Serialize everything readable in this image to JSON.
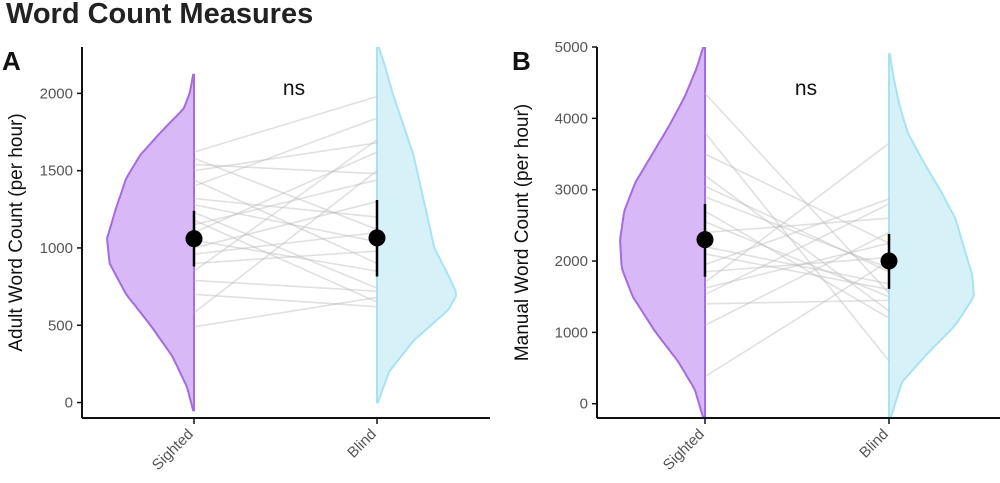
{
  "title": "Word Count Measures",
  "colors": {
    "sighted_fill": "#D9B8F7",
    "sighted_stroke": "#A36CE0",
    "blind_fill": "#D6F1F8",
    "blind_stroke": "#A8E3F2",
    "paired_line": "#BBBBBB",
    "point": "#000000"
  },
  "chart_data": [
    {
      "type": "violin",
      "panel": "A",
      "title": "",
      "xlabel": "",
      "ylabel": "Adult Word Count (per hour)",
      "categories": [
        "Sighted",
        "Blind"
      ],
      "ylim": [
        -100,
        2300
      ],
      "yticks": [
        0,
        500,
        1000,
        1500,
        2000
      ],
      "significance": "ns",
      "summary": [
        {
          "group": "Sighted",
          "mean": 1060,
          "lower": 880,
          "upper": 1240
        },
        {
          "group": "Blind",
          "mean": 1065,
          "lower": 815,
          "upper": 1310
        }
      ],
      "density": {
        "Sighted": [
          [
            -50,
            0.01
          ],
          [
            100,
            0.08
          ],
          [
            300,
            0.25
          ],
          [
            500,
            0.5
          ],
          [
            700,
            0.78
          ],
          [
            900,
            0.97
          ],
          [
            1060,
            1.0
          ],
          [
            1250,
            0.9
          ],
          [
            1450,
            0.78
          ],
          [
            1600,
            0.62
          ],
          [
            1750,
            0.38
          ],
          [
            1900,
            0.12
          ],
          [
            2000,
            0.05
          ],
          [
            2120,
            0.01
          ]
        ],
        "Blind": [
          [
            0,
            0.01
          ],
          [
            200,
            0.14
          ],
          [
            400,
            0.42
          ],
          [
            600,
            0.82
          ],
          [
            700,
            0.92
          ],
          [
            800,
            0.84
          ],
          [
            1000,
            0.66
          ],
          [
            1200,
            0.58
          ],
          [
            1400,
            0.5
          ],
          [
            1600,
            0.42
          ],
          [
            1800,
            0.3
          ],
          [
            2000,
            0.18
          ],
          [
            2200,
            0.08
          ],
          [
            2300,
            0.02
          ]
        ]
      },
      "pairs": [
        [
          1620,
          1980
        ],
        [
          1580,
          1120
        ],
        [
          1540,
          1480
        ],
        [
          1500,
          1680
        ],
        [
          1440,
          900
        ],
        [
          1400,
          1840
        ],
        [
          1320,
          1200
        ],
        [
          1280,
          1040
        ],
        [
          1230,
          740
        ],
        [
          1180,
          650
        ],
        [
          1150,
          1440
        ],
        [
          1100,
          1620
        ],
        [
          1050,
          850
        ],
        [
          1000,
          1300
        ],
        [
          960,
          1100
        ],
        [
          900,
          980
        ],
        [
          850,
          1700
        ],
        [
          790,
          720
        ],
        [
          700,
          620
        ],
        [
          580,
          1500
        ],
        [
          490,
          680
        ]
      ]
    },
    {
      "type": "violin",
      "panel": "B",
      "title": "",
      "xlabel": "",
      "ylabel": "Manual Word Count (per hour)",
      "categories": [
        "Sighted",
        "Blind"
      ],
      "ylim": [
        -200,
        5000
      ],
      "yticks": [
        0,
        1000,
        2000,
        3000,
        4000,
        5000
      ],
      "significance": "ns",
      "summary": [
        {
          "group": "Sighted",
          "mean": 2300,
          "lower": 1780,
          "upper": 2800
        },
        {
          "group": "Blind",
          "mean": 2000,
          "lower": 1610,
          "upper": 2380
        }
      ],
      "density": {
        "Sighted": [
          [
            -200,
            0.02
          ],
          [
            200,
            0.12
          ],
          [
            600,
            0.32
          ],
          [
            1000,
            0.58
          ],
          [
            1500,
            0.85
          ],
          [
            1900,
            0.98
          ],
          [
            2300,
            1.0
          ],
          [
            2700,
            0.95
          ],
          [
            3100,
            0.82
          ],
          [
            3500,
            0.62
          ],
          [
            3900,
            0.42
          ],
          [
            4300,
            0.24
          ],
          [
            4700,
            0.1
          ],
          [
            5000,
            0.02
          ]
        ],
        "Blind": [
          [
            -200,
            0.02
          ],
          [
            300,
            0.15
          ],
          [
            700,
            0.45
          ],
          [
            1100,
            0.78
          ],
          [
            1500,
            1.0
          ],
          [
            1800,
            0.98
          ],
          [
            2200,
            0.88
          ],
          [
            2600,
            0.78
          ],
          [
            3000,
            0.6
          ],
          [
            3400,
            0.4
          ],
          [
            3800,
            0.22
          ],
          [
            4200,
            0.12
          ],
          [
            4600,
            0.05
          ],
          [
            4900,
            0.01
          ]
        ]
      },
      "pairs": [
        [
          4350,
          1550
        ],
        [
          3800,
          600
        ],
        [
          3500,
          2250
        ],
        [
          3200,
          1300
        ],
        [
          3050,
          1850
        ],
        [
          2900,
          1900
        ],
        [
          2700,
          1200
        ],
        [
          2550,
          1500
        ],
        [
          2400,
          2600
        ],
        [
          2200,
          1680
        ],
        [
          2100,
          1600
        ],
        [
          1950,
          2870
        ],
        [
          1850,
          2050
        ],
        [
          1700,
          3650
        ],
        [
          1620,
          2250
        ],
        [
          1530,
          2800
        ],
        [
          1400,
          1450
        ],
        [
          1100,
          2400
        ],
        [
          380,
          2000
        ]
      ]
    }
  ]
}
